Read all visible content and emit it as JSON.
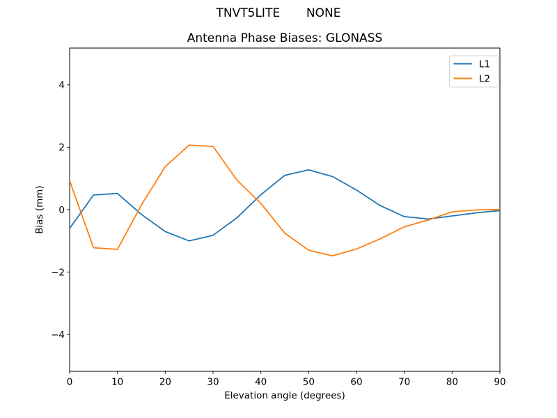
{
  "chart_data": {
    "type": "line",
    "suptitle": "TNVT5LITE       NONE",
    "title": "Antenna Phase Biases: GLONASS",
    "xlabel": "Elevation angle (degrees)",
    "ylabel": "Bias (mm)",
    "xlim": [
      0,
      90
    ],
    "ylim": [
      -5.18,
      5.18
    ],
    "xticks": [
      0,
      10,
      20,
      30,
      40,
      50,
      60,
      70,
      80,
      90
    ],
    "yticks": [
      -4,
      -2,
      0,
      2,
      4
    ],
    "grid": false,
    "background_color": "#ffffff",
    "spine_color": "#000000",
    "legend": {
      "position": "upper right",
      "border_color": "#d5d5d5"
    },
    "x": [
      0,
      5,
      10,
      15,
      20,
      25,
      30,
      35,
      40,
      45,
      50,
      55,
      60,
      65,
      70,
      75,
      80,
      85,
      90
    ],
    "series": [
      {
        "name": "L1",
        "color": "#1f77b4",
        "values": [
          -0.6,
          0.47,
          0.52,
          -0.15,
          -0.7,
          -1.0,
          -0.82,
          -0.26,
          0.48,
          1.1,
          1.28,
          1.06,
          0.63,
          0.13,
          -0.22,
          -0.3,
          -0.2,
          -0.1,
          -0.03
        ]
      },
      {
        "name": "L2",
        "color": "#ff7f0e",
        "values": [
          0.93,
          -1.22,
          -1.27,
          0.15,
          1.38,
          2.07,
          2.03,
          0.95,
          0.2,
          -0.75,
          -1.3,
          -1.48,
          -1.26,
          -0.93,
          -0.55,
          -0.33,
          -0.07,
          -0.01,
          0.01
        ]
      }
    ]
  }
}
